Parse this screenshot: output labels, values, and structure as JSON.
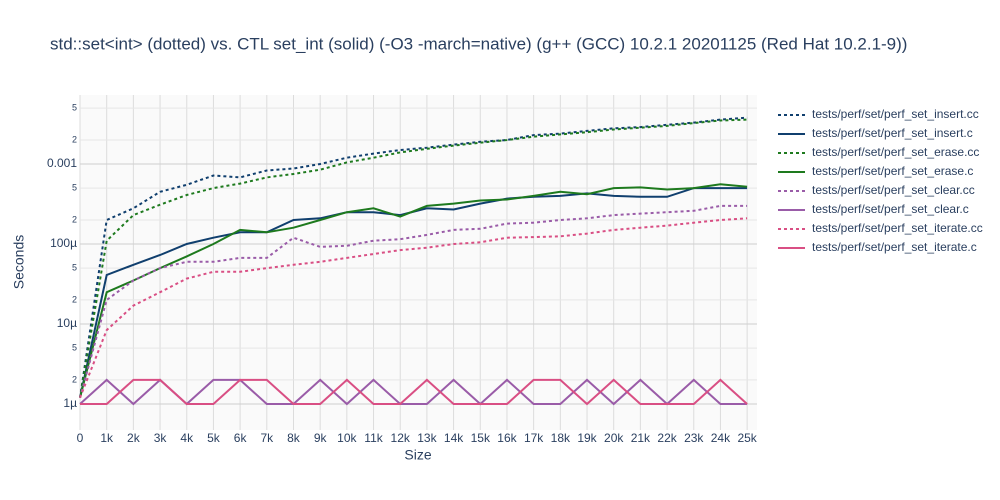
{
  "chart_data": {
    "type": "line",
    "title": "std::set<int> (dotted) vs. CTL set_int (solid) (-O3 -march=native) (g++ (GCC) 10.2.1 20201125 (Red Hat 10.2.1-9))",
    "x_label": "Size",
    "y_label": "Seconds",
    "log_y": true,
    "grid": true,
    "legend_position": "right",
    "xlim": [
      0,
      25370
    ],
    "ylim": [
      4.73e-07,
      0.0073
    ],
    "xticks": [
      0,
      {
        "value": 1000,
        "label": "1k"
      },
      {
        "value": 2000,
        "label": "2k"
      },
      {
        "value": 3000,
        "label": "3k"
      },
      {
        "value": 4000,
        "label": "4k"
      },
      {
        "value": 5000,
        "label": "5k"
      },
      {
        "value": 6000,
        "label": "6k"
      },
      {
        "value": 7000,
        "label": "7k"
      },
      {
        "value": 8000,
        "label": "8k"
      },
      {
        "value": 9000,
        "label": "9k"
      },
      {
        "value": 10000,
        "label": "10k"
      },
      {
        "value": 11000,
        "label": "11k"
      },
      {
        "value": 12000,
        "label": "12k"
      },
      {
        "value": 13000,
        "label": "13k"
      },
      {
        "value": 14000,
        "label": "14k"
      },
      {
        "value": 15000,
        "label": "15k"
      },
      {
        "value": 16000,
        "label": "16k"
      },
      {
        "value": 17000,
        "label": "17k"
      },
      {
        "value": 18000,
        "label": "18k"
      },
      {
        "value": 19000,
        "label": "19k"
      },
      {
        "value": 20000,
        "label": "20k"
      },
      {
        "value": 21000,
        "label": "21k"
      },
      {
        "value": 22000,
        "label": "22k"
      },
      {
        "value": 23000,
        "label": "23k"
      },
      {
        "value": 24000,
        "label": "24k"
      },
      {
        "value": 25000,
        "label": "25k"
      }
    ],
    "yticks": [
      {
        "value": 1e-06,
        "label": "1µ"
      },
      {
        "value": 2e-06,
        "label": "2"
      },
      {
        "value": 5e-06,
        "label": "5"
      },
      {
        "value": 1e-05,
        "label": "10µ"
      },
      {
        "value": 2e-05,
        "label": "2"
      },
      {
        "value": 5e-05,
        "label": "5"
      },
      {
        "value": 0.0001,
        "label": "100µ"
      },
      {
        "value": 0.0002,
        "label": "2"
      },
      {
        "value": 0.0005,
        "label": "5"
      },
      0.001,
      {
        "value": 0.002,
        "label": "2"
      },
      {
        "value": 0.005,
        "label": "5"
      }
    ],
    "x": [
      0,
      1000,
      2000,
      3000,
      4000,
      5000,
      6000,
      7000,
      8000,
      9000,
      10000,
      11000,
      12000,
      13000,
      14000,
      15000,
      16000,
      17000,
      18000,
      19000,
      20000,
      21000,
      22000,
      23000,
      24000,
      25000
    ],
    "series": [
      {
        "name": "tests/perf/set/perf_set_insert.cc",
        "color": "#103f6e",
        "dash": "dotted",
        "values": [
          1.2e-06,
          0.0002,
          0.00028,
          0.00045,
          0.00055,
          0.00072,
          0.00068,
          0.00083,
          0.00088,
          0.001,
          0.0012,
          0.00135,
          0.0015,
          0.0016,
          0.00175,
          0.0019,
          0.002,
          0.0023,
          0.0024,
          0.0026,
          0.0028,
          0.0029,
          0.0031,
          0.0033,
          0.0036,
          0.0038
        ]
      },
      {
        "name": "tests/perf/set/perf_set_insert.c",
        "color": "#103f6e",
        "dash": "solid",
        "values": [
          1.2e-06,
          4.1e-05,
          5.5e-05,
          7.3e-05,
          0.0001,
          0.00012,
          0.00014,
          0.00014,
          0.0002,
          0.00021,
          0.00025,
          0.00025,
          0.00023,
          0.00028,
          0.00027,
          0.00032,
          0.00037,
          0.00039,
          0.0004,
          0.00043,
          0.0004,
          0.00039,
          0.00039,
          0.0005,
          0.0005,
          0.0005
        ]
      },
      {
        "name": "tests/perf/set/perf_set_erase.cc",
        "color": "#1e7a1e",
        "dash": "dotted",
        "values": [
          1.2e-06,
          0.00011,
          0.00023,
          0.00031,
          0.00041,
          0.0005,
          0.00057,
          0.00068,
          0.00075,
          0.00085,
          0.00105,
          0.0012,
          0.0014,
          0.00155,
          0.0017,
          0.00185,
          0.002,
          0.0022,
          0.00235,
          0.0025,
          0.0027,
          0.00285,
          0.003,
          0.00325,
          0.0035,
          0.0036
        ]
      },
      {
        "name": "tests/perf/set/perf_set_erase.c",
        "color": "#1e7a1e",
        "dash": "solid",
        "values": [
          1.2e-06,
          2.5e-05,
          3.5e-05,
          5e-05,
          7e-05,
          0.0001,
          0.00015,
          0.00014,
          0.00016,
          0.0002,
          0.00025,
          0.00028,
          0.00022,
          0.0003,
          0.00032,
          0.00035,
          0.00036,
          0.0004,
          0.00045,
          0.00042,
          0.0005,
          0.00051,
          0.00048,
          0.0005,
          0.00056,
          0.00052
        ]
      },
      {
        "name": "tests/perf/set/perf_set_clear.cc",
        "color": "#9a5ca8",
        "dash": "dotted",
        "values": [
          1.2e-06,
          2e-05,
          3.5e-05,
          5e-05,
          6e-05,
          6e-05,
          6.7e-05,
          6.7e-05,
          0.00012,
          9.2e-05,
          9.5e-05,
          0.00011,
          0.000115,
          0.00013,
          0.00015,
          0.000155,
          0.00018,
          0.000185,
          0.0002,
          0.00021,
          0.00023,
          0.00024,
          0.00025,
          0.00026,
          0.0003,
          0.0003
        ]
      },
      {
        "name": "tests/perf/set/perf_set_clear.c",
        "color": "#9a5ca8",
        "dash": "solid",
        "values": [
          1e-06,
          2e-06,
          1e-06,
          2e-06,
          1e-06,
          2e-06,
          2e-06,
          1e-06,
          1e-06,
          2e-06,
          1e-06,
          2e-06,
          1e-06,
          1e-06,
          2e-06,
          1e-06,
          2e-06,
          1e-06,
          1e-06,
          2e-06,
          1e-06,
          2e-06,
          1e-06,
          2e-06,
          1e-06,
          1e-06
        ]
      },
      {
        "name": "tests/perf/set/perf_set_iterate.cc",
        "color": "#d94f84",
        "dash": "dotted",
        "values": [
          1.2e-06,
          8.4e-06,
          1.7e-05,
          2.5e-05,
          3.7e-05,
          4.5e-05,
          4.5e-05,
          5e-05,
          5.5e-05,
          6e-05,
          6.7e-05,
          7.5e-05,
          8.4e-05,
          9e-05,
          0.0001,
          0.000105,
          0.00012,
          0.000122,
          0.000125,
          0.000135,
          0.00015,
          0.00016,
          0.00017,
          0.000185,
          0.0002,
          0.00021
        ]
      },
      {
        "name": "tests/perf/set/perf_set_iterate.c",
        "color": "#d94f84",
        "dash": "solid",
        "values": [
          1e-06,
          1e-06,
          2e-06,
          2e-06,
          1e-06,
          1e-06,
          2e-06,
          2e-06,
          1e-06,
          1e-06,
          2e-06,
          1e-06,
          1e-06,
          2e-06,
          1e-06,
          1e-06,
          1e-06,
          2e-06,
          2e-06,
          1e-06,
          2e-06,
          1e-06,
          1e-06,
          1e-06,
          2e-06,
          1e-06
        ]
      }
    ]
  }
}
